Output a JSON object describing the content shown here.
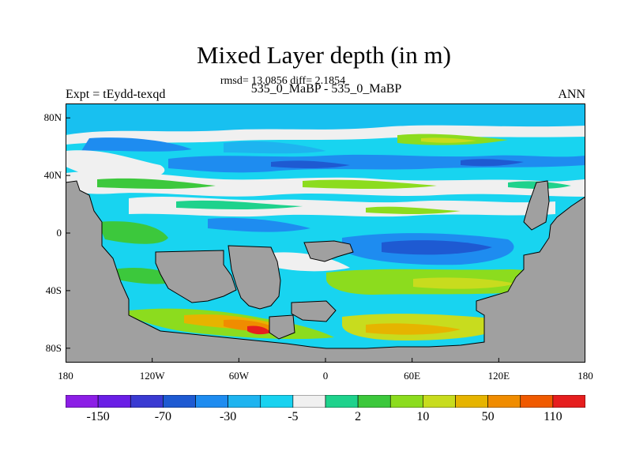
{
  "figure": {
    "title": "Mixed Layer depth (in m)",
    "stats": "rmsd= 13.0856 diff= 2.1854",
    "case": "535_0_MaBP - 535_0_MaBP",
    "left_label": "Expt = tEydd-texqd",
    "right_label": "ANN"
  },
  "map": {
    "lon_range": [
      -180,
      180
    ],
    "lat_range": [
      -90,
      90
    ],
    "land_color": "#a0a0a0",
    "ocean_base_color": "#18d4f0",
    "y_ticks": [
      {
        "label": "80N",
        "lat": 80
      },
      {
        "label": "40N",
        "lat": 40
      },
      {
        "label": "0",
        "lat": 0
      },
      {
        "label": "40S",
        "lat": -40
      },
      {
        "label": "80S",
        "lat": -80
      }
    ],
    "x_ticks": [
      {
        "label": "180",
        "lon": -180
      },
      {
        "label": "120W",
        "lon": -120
      },
      {
        "label": "60W",
        "lon": -60
      },
      {
        "label": "0",
        "lon": 0
      },
      {
        "label": "60E",
        "lon": 60
      },
      {
        "label": "120E",
        "lon": 120
      },
      {
        "label": "180",
        "lon": 180
      }
    ]
  },
  "colorbar": {
    "colors": [
      "#8c1ee6",
      "#6a1ee6",
      "#3a3ad2",
      "#1e5ad2",
      "#1e8cf0",
      "#1eb4f0",
      "#18d2f0",
      "#f0f0f0",
      "#1ed28c",
      "#3cc83c",
      "#8cdc1e",
      "#c8dc1e",
      "#e6b400",
      "#f08c00",
      "#f05a00",
      "#e61e1e"
    ],
    "labels": [
      {
        "text": "-150",
        "boundary": 1
      },
      {
        "text": "-70",
        "boundary": 3
      },
      {
        "text": "-30",
        "boundary": 5
      },
      {
        "text": "-5",
        "boundary": 7
      },
      {
        "text": "2",
        "boundary": 9
      },
      {
        "text": "10",
        "boundary": 11
      },
      {
        "text": "50",
        "boundary": 13
      },
      {
        "text": "110",
        "boundary": 15
      }
    ]
  }
}
